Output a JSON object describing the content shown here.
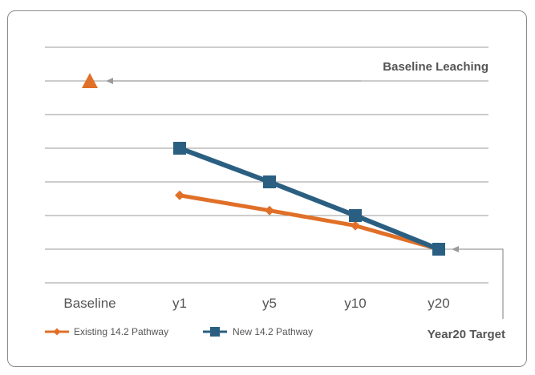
{
  "chart_data": {
    "type": "line",
    "categories": [
      "Baseline",
      "y1",
      "y5",
      "y10",
      "y20"
    ],
    "series": [
      {
        "name": "Existing 14.2 Pathway",
        "color": "#e07028",
        "marker": "diamond",
        "values": [
          null,
          4.2,
          3.3,
          2.4,
          1.0
        ]
      },
      {
        "name": "New 14.2 Pathway",
        "color": "#2b5f82",
        "marker": "square",
        "values": [
          null,
          7.0,
          5.0,
          3.0,
          1.0
        ]
      }
    ],
    "baseline_marker": {
      "category": "Baseline",
      "value": 11.0,
      "color": "#e07028",
      "marker": "triangle"
    },
    "annotations": {
      "baseline": "Baseline Leaching",
      "target": "Year20 Target"
    },
    "ylim": [
      -1,
      13
    ],
    "grid": true,
    "legend_position": "bottom-left",
    "xlabel": "",
    "ylabel": "",
    "title": ""
  }
}
